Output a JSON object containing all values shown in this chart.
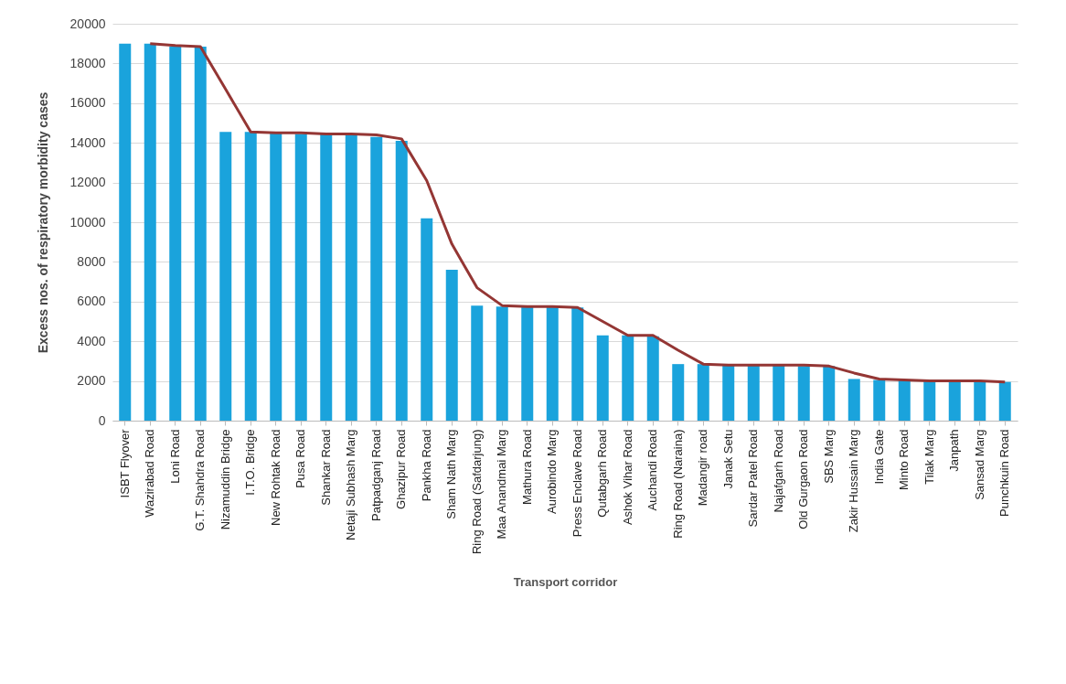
{
  "chart_data": {
    "type": "bar",
    "xlabel": "Transport corridor",
    "ylabel": "Excess nos. of respiratory morbidity cases",
    "categories": [
      "ISBT Flyover",
      "Wazirabad Road",
      "Loni Road",
      "G.T. Shahdra Road",
      "Nizamuddin Bridge",
      "I.T.O. Bridge",
      "New Rohtak Road",
      "Pusa Road",
      "Shankar Road",
      "Netaji Subhash Marg",
      "Patpadganj Road",
      "Ghazipur Road",
      "Pankha Road",
      "Sham Nath Marg",
      "Ring Road (Safdarjung)",
      "Maa Anandmai Marg",
      "Mathura Road",
      "Aurobindo Marg",
      "Press Enclave Road",
      "Qutabgarh Road",
      "Ashok Vihar Road",
      "Auchandi Road",
      "Ring Road (Naraina)",
      "Madangir road",
      "Janak Setu",
      "Sardar Patel Road",
      "Najafgarh Road",
      "Old Gurgaon Road",
      "SBS Marg",
      "Zakir Hussain Marg",
      "India Gate",
      "Minto Road",
      "Tilak Marg",
      "Janpath",
      "Sansad Marg",
      "Punchkuin Road"
    ],
    "series": [
      {
        "color": "#1aa3dc",
        "values": [
          19000,
          19000,
          18850,
          18850,
          14550,
          14550,
          14500,
          14450,
          14450,
          14450,
          14300,
          14100,
          10200,
          7600,
          5800,
          5750,
          5750,
          5750,
          5700,
          4300,
          4300,
          4250,
          2850,
          2850,
          2800,
          2800,
          2800,
          2750,
          2750,
          2100,
          2050,
          2050,
          2000,
          2000,
          1950,
          1950
        ]
      },
      {
        "type": "line",
        "color": "#943634",
        "values": [
          null,
          19000,
          18900,
          18850,
          16700,
          14550,
          14500,
          14500,
          14450,
          14450,
          14400,
          14200,
          12100,
          8900,
          6700,
          5800,
          5750,
          5750,
          5700,
          5000,
          4300,
          4300,
          3550,
          2850,
          2800,
          2800,
          2800,
          2800,
          2750,
          2400,
          2100,
          2050,
          2000,
          2000,
          2000,
          1950
        ]
      }
    ],
    "ylim": [
      0,
      20000
    ],
    "yticks": [
      0,
      2000,
      4000,
      6000,
      8000,
      10000,
      12000,
      14000,
      16000,
      18000,
      20000
    ],
    "grid": "y"
  }
}
